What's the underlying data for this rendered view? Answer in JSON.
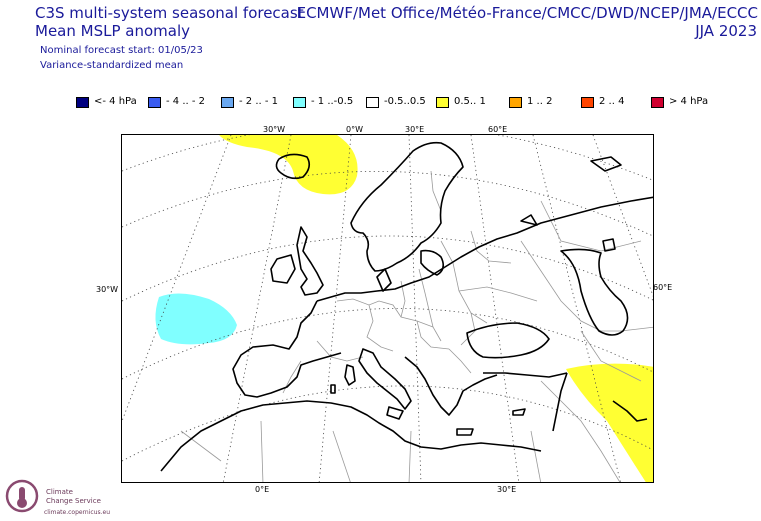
{
  "header": {
    "line1": "C3S multi-system seasonal forecast",
    "line2": "Mean MSLP anomaly",
    "line3": "Nominal forecast start: 01/05/23",
    "line4": "Variance-standardized mean",
    "systems": "ECMWF/Met Office/Météo-France/CMCC/DWD/NCEP/JMA/ECCC",
    "period": "JJA 2023"
  },
  "legend": [
    {
      "label": "<- 4 hPa",
      "color": "#000080"
    },
    {
      "label": "- 4 .. - 2",
      "color": "#3a5cf0"
    },
    {
      "label": "- 2 .. - 1",
      "color": "#6aa8f0"
    },
    {
      "label": "- 1 ..-0.5",
      "color": "#80ffff"
    },
    {
      "label": "-0.5..0.5",
      "color": "#ffffff"
    },
    {
      "label": "0.5.. 1",
      "color": "#ffff33"
    },
    {
      "label": "1 .. 2",
      "color": "#ffa500"
    },
    {
      "label": "2 .. 4",
      "color": "#ff4500"
    },
    {
      "label": "> 4 hPa",
      "color": "#d00030"
    }
  ],
  "map_labels": {
    "top": [
      "30°W",
      "0°W",
      "30°E",
      "60°E"
    ],
    "left": "30°W",
    "right": "60°E",
    "bottom": [
      "0°E",
      "30°E"
    ]
  },
  "logo": {
    "line1": "Climate",
    "line2": "Change Service",
    "url": "climate.copernicus.eu"
  }
}
